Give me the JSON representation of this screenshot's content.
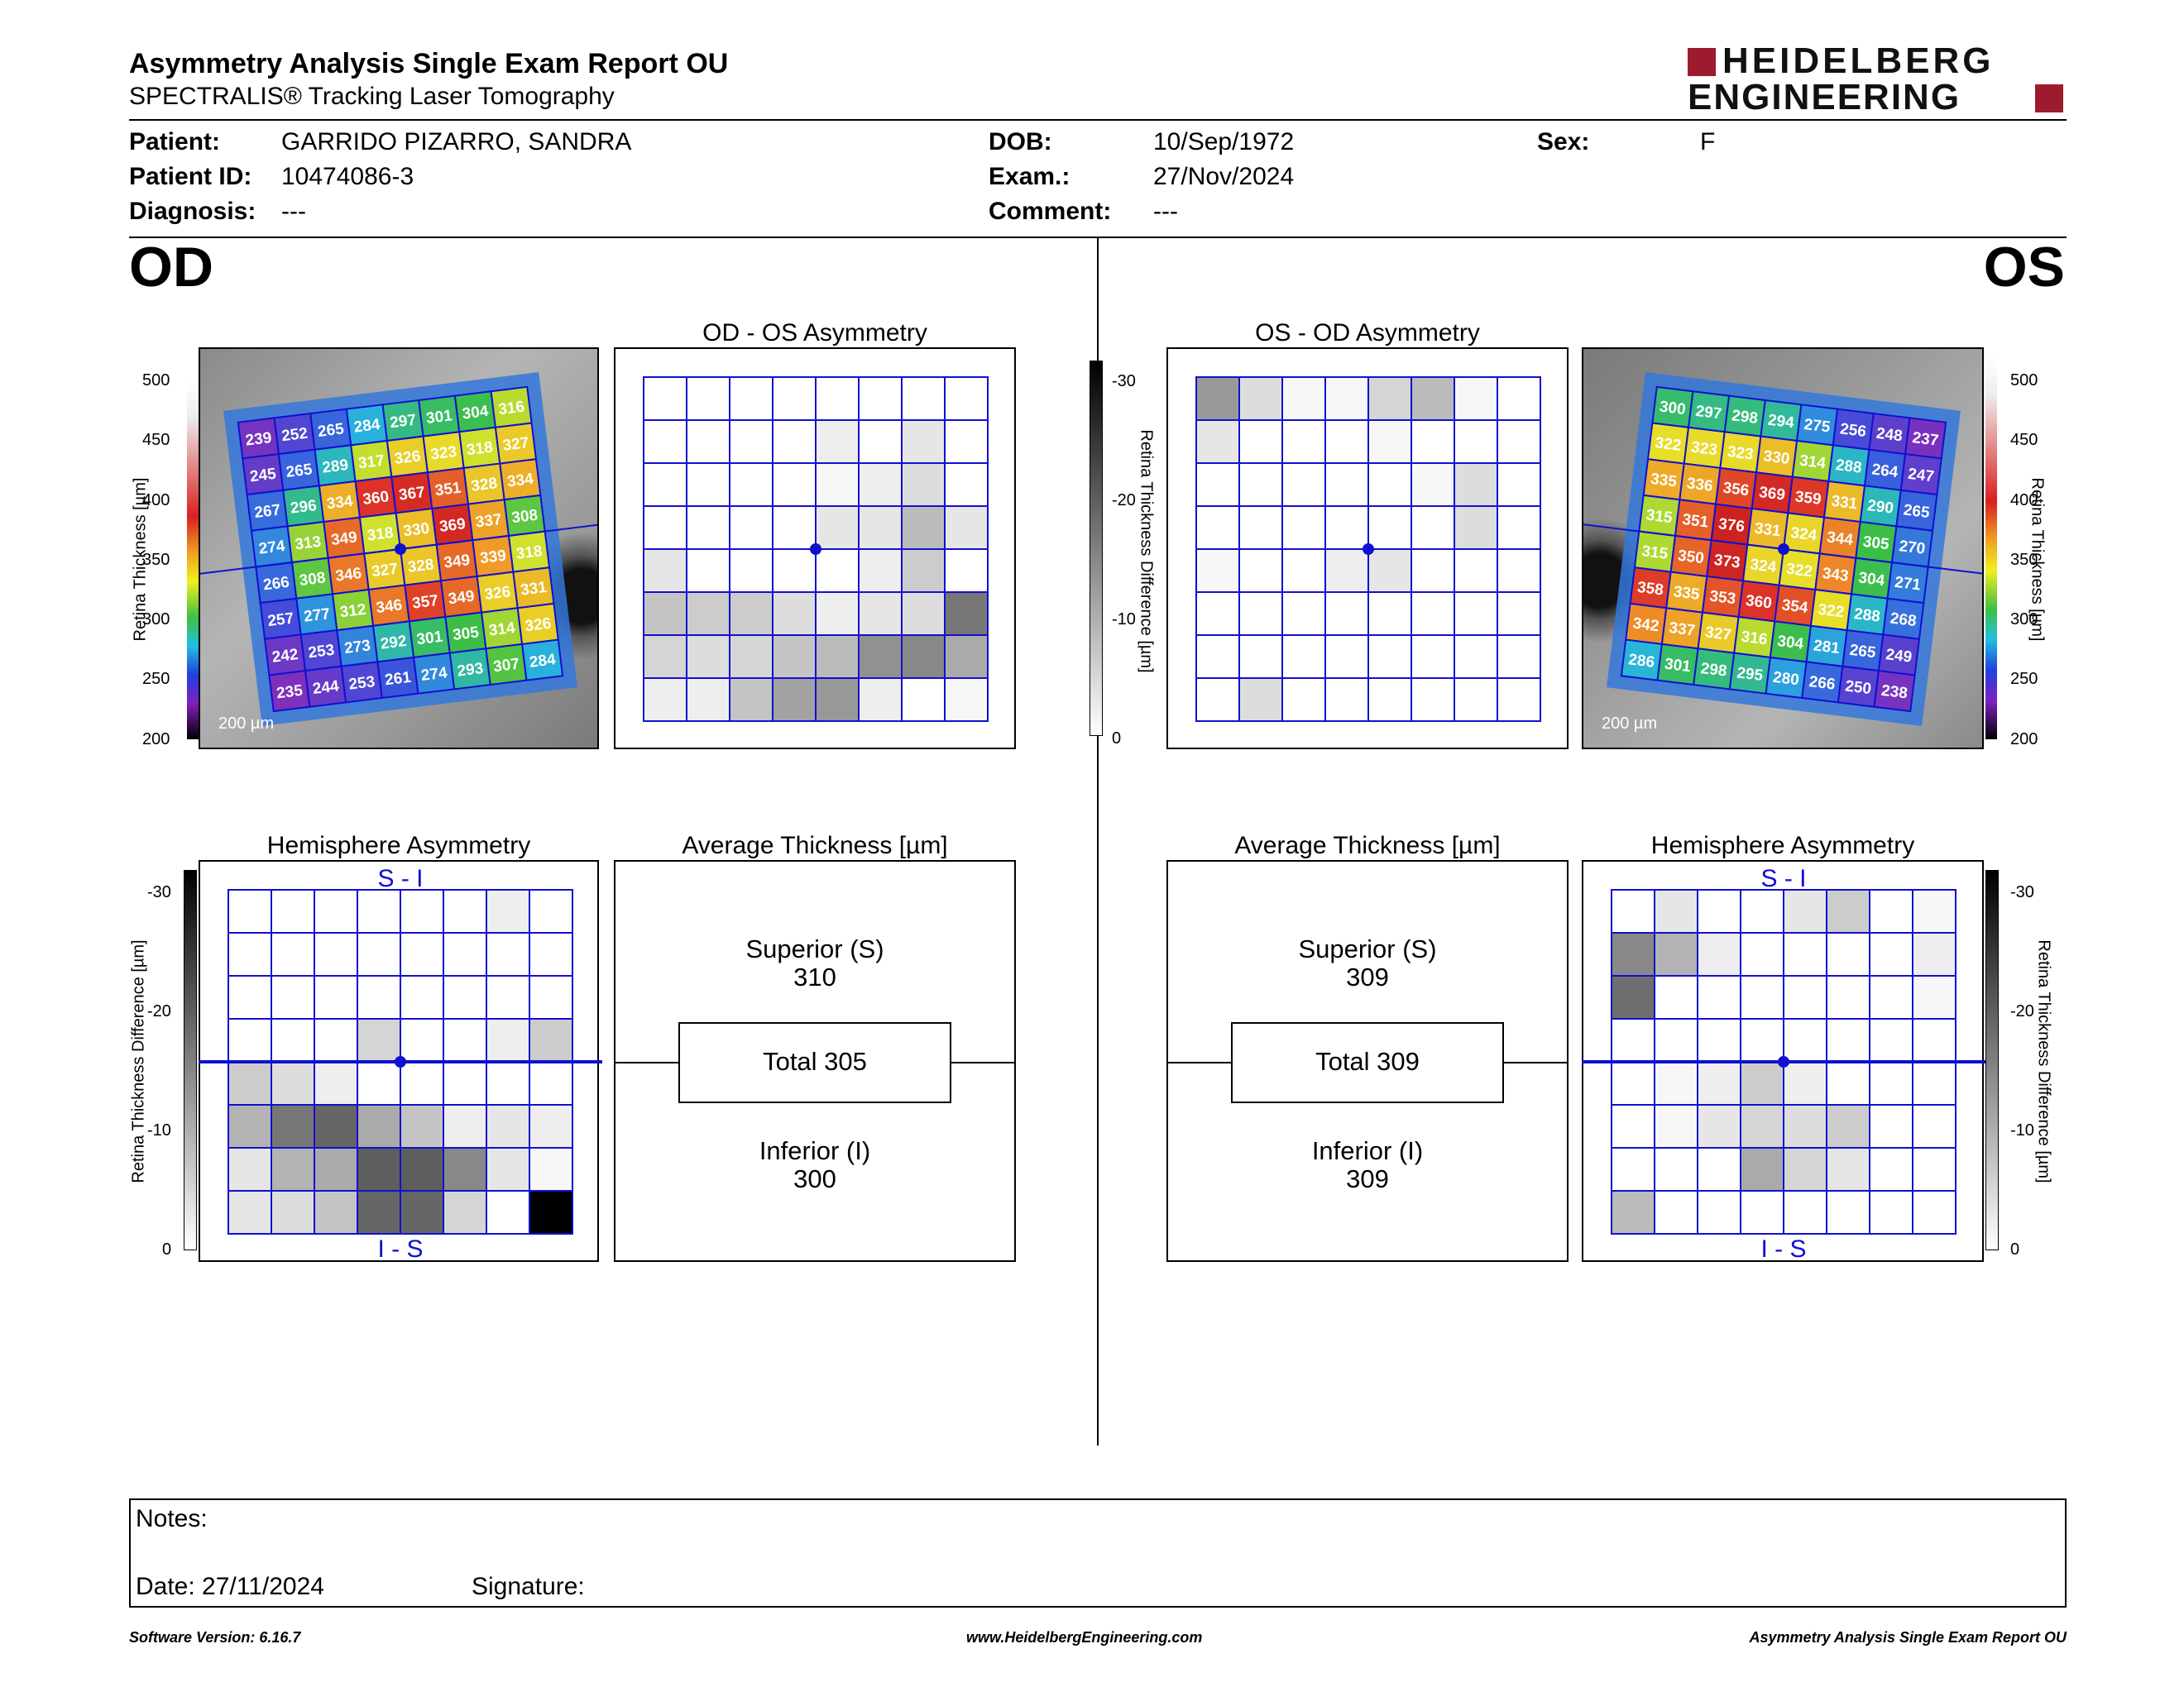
{
  "report": {
    "title": "Asymmetry Analysis Single Exam Report OU",
    "subtitle": "SPECTRALIS® Tracking Laser Tomography",
    "logo_line1": "HEIDELBERG",
    "logo_line2": "ENGINEERING",
    "brand_color": "#9d1b2e"
  },
  "patient": {
    "patient_label": "Patient:",
    "patient_value": "GARRIDO PIZARRO, SANDRA",
    "id_label": "Patient ID:",
    "id_value": "10474086-3",
    "diagnosis_label": "Diagnosis:",
    "diagnosis_value": "---",
    "dob_label": "DOB:",
    "dob_value": "10/Sep/1972",
    "exam_label": "Exam.:",
    "exam_value": "27/Nov/2024",
    "comment_label": "Comment:",
    "comment_value": "---",
    "sex_label": "Sex:",
    "sex_value": "F"
  },
  "od": {
    "eye": "OD",
    "scale_bar": "200 µm",
    "thickness_axis_label": "Retina Thickness [µm]",
    "thickness_ticks": [
      "500",
      "450",
      "400",
      "350",
      "300",
      "250",
      "200"
    ],
    "thickness_grid": [
      [
        239,
        252,
        265,
        284,
        297,
        301,
        304,
        316
      ],
      [
        245,
        265,
        289,
        317,
        326,
        323,
        318,
        327
      ],
      [
        267,
        296,
        334,
        360,
        367,
        351,
        328,
        334
      ],
      [
        274,
        313,
        349,
        318,
        330,
        369,
        337,
        308
      ],
      [
        266,
        308,
        346,
        327,
        328,
        349,
        339,
        318
      ],
      [
        257,
        277,
        312,
        346,
        357,
        349,
        326,
        331
      ],
      [
        242,
        253,
        273,
        292,
        301,
        305,
        314,
        326
      ],
      [
        235,
        244,
        253,
        261,
        274,
        293,
        307,
        284
      ]
    ],
    "asymmetry_title": "OD - OS Asymmetry",
    "asymmetry_grid": [
      [
        0,
        0,
        0,
        0,
        0,
        0,
        0,
        0
      ],
      [
        0,
        0,
        0,
        0,
        2,
        0,
        3,
        0
      ],
      [
        0,
        0,
        0,
        0,
        1,
        2,
        4,
        0
      ],
      [
        0,
        0,
        0,
        0,
        3,
        3,
        8,
        3
      ],
      [
        3,
        0,
        0,
        0,
        0,
        2,
        6,
        0
      ],
      [
        7,
        6,
        6,
        4,
        2,
        3,
        4,
        16
      ],
      [
        5,
        4,
        5,
        7,
        8,
        13,
        14,
        10
      ],
      [
        2,
        2,
        7,
        11,
        12,
        2,
        0,
        1
      ]
    ],
    "hemisphere_title": "Hemisphere Asymmetry",
    "hemisphere_top": "S - I",
    "hemisphere_bottom": "I - S",
    "hemisphere_grid": [
      [
        0,
        0,
        0,
        0,
        0,
        0,
        2,
        0
      ],
      [
        0,
        0,
        0,
        0,
        0,
        0,
        0,
        0
      ],
      [
        0,
        0,
        0,
        0,
        0,
        0,
        0,
        0
      ],
      [
        0,
        0,
        0,
        5,
        0,
        0,
        2,
        6
      ],
      [
        6,
        4,
        2,
        0,
        0,
        0,
        0,
        0
      ],
      [
        9,
        16,
        18,
        10,
        7,
        2,
        3,
        2
      ],
      [
        3,
        9,
        10,
        19,
        19,
        14,
        3,
        1
      ],
      [
        3,
        4,
        7,
        18,
        18,
        5,
        0,
        30
      ]
    ],
    "average_title": "Average Thickness [µm]",
    "superior_label": "Superior (S)",
    "superior_value": "310",
    "total_label": "Total 305",
    "inferior_label": "Inferior (I)",
    "inferior_value": "300"
  },
  "os": {
    "eye": "OS",
    "scale_bar": "200 µm",
    "thickness_axis_label": "Retina Thickness [µm]",
    "thickness_ticks": [
      "500",
      "450",
      "400",
      "350",
      "300",
      "250",
      "200"
    ],
    "thickness_grid": [
      [
        300,
        297,
        298,
        294,
        275,
        256,
        248,
        237
      ],
      [
        322,
        323,
        323,
        330,
        314,
        288,
        264,
        247
      ],
      [
        335,
        336,
        356,
        369,
        359,
        331,
        290,
        265
      ],
      [
        315,
        351,
        376,
        331,
        324,
        344,
        305,
        270
      ],
      [
        315,
        350,
        373,
        324,
        322,
        343,
        304,
        271
      ],
      [
        358,
        335,
        353,
        360,
        354,
        322,
        288,
        268
      ],
      [
        342,
        337,
        327,
        316,
        304,
        281,
        265,
        249
      ],
      [
        286,
        301,
        298,
        295,
        280,
        266,
        250,
        238
      ]
    ],
    "asymmetry_title": "OS - OD Asymmetry",
    "asymmetry_grid": [
      [
        12,
        4,
        1,
        1,
        5,
        8,
        1,
        0
      ],
      [
        3,
        0,
        0,
        0,
        1,
        0,
        0,
        0
      ],
      [
        0,
        0,
        0,
        0,
        0,
        1,
        4,
        0
      ],
      [
        0,
        0,
        0,
        0,
        0,
        0,
        4,
        0
      ],
      [
        1,
        0,
        0,
        2,
        3,
        0,
        0,
        0
      ],
      [
        0,
        0,
        0,
        0,
        0,
        0,
        0,
        0
      ],
      [
        0,
        0,
        0,
        0,
        0,
        0,
        0,
        0
      ],
      [
        0,
        4,
        0,
        0,
        0,
        0,
        0,
        0
      ]
    ],
    "hemisphere_title": "Hemisphere Asymmetry",
    "hemisphere_top": "S - I",
    "hemisphere_bottom": "I - S",
    "hemisphere_grid": [
      [
        0,
        3,
        0,
        0,
        3,
        6,
        0,
        1
      ],
      [
        14,
        9,
        2,
        0,
        0,
        0,
        0,
        2
      ],
      [
        17,
        0,
        0,
        0,
        0,
        0,
        0,
        1
      ],
      [
        0,
        0,
        0,
        0,
        0,
        0,
        0,
        0
      ],
      [
        0,
        1,
        2,
        6,
        2,
        0,
        0,
        0
      ],
      [
        0,
        1,
        3,
        5,
        4,
        6,
        0,
        0
      ],
      [
        0,
        0,
        0,
        10,
        5,
        3,
        0,
        0
      ],
      [
        8,
        0,
        0,
        0,
        0,
        0,
        0,
        0
      ]
    ],
    "average_title": "Average Thickness [µm]",
    "superior_label": "Superior (S)",
    "superior_value": "309",
    "total_label": "Total 309",
    "inferior_label": "Inferior (I)",
    "inferior_value": "309"
  },
  "difference_scale": {
    "axis_label": "Retina Thickness Difference [µm]",
    "ticks": [
      "-30",
      "-20",
      "-10",
      "0"
    ],
    "max_abs": 30
  },
  "notes": {
    "notes_label": "Notes:",
    "date_label": "Date: 27/11/2024",
    "signature_label": "Signature:"
  },
  "footer": {
    "software": "Software Version: 6.16.7",
    "website": "www.HeidelbergEngineering.com",
    "report_name": "Asymmetry Analysis Single Exam Report OU"
  }
}
